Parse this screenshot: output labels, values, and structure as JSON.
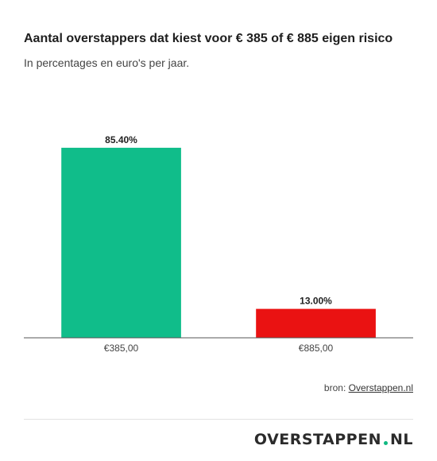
{
  "header": {
    "title": "Aantal overstappers dat kiest voor € 385 of € 885 eigen risico",
    "subtitle": "In percentages en euro's per jaar."
  },
  "source": {
    "prefix": "bron: ",
    "link_label": "Overstappen.nl"
  },
  "logo": {
    "text_main": "OVERSTAPPEN",
    "text_tld": "NL",
    "dot_color": "#10b981"
  },
  "chart_data": {
    "type": "bar",
    "categories": [
      "€385,00",
      "€885,00"
    ],
    "values": [
      85.4,
      13.0
    ],
    "value_labels": [
      "85.40%",
      "13.00%"
    ],
    "colors": [
      "#10bd8a",
      "#ea1212"
    ],
    "title": "Aantal overstappers dat kiest voor € 385 of € 885 eigen risico",
    "subtitle": "In percentages en euro's per jaar.",
    "xlabel": "",
    "ylabel": "",
    "ylim": [
      0,
      100
    ],
    "grid": false,
    "legend": "none"
  }
}
